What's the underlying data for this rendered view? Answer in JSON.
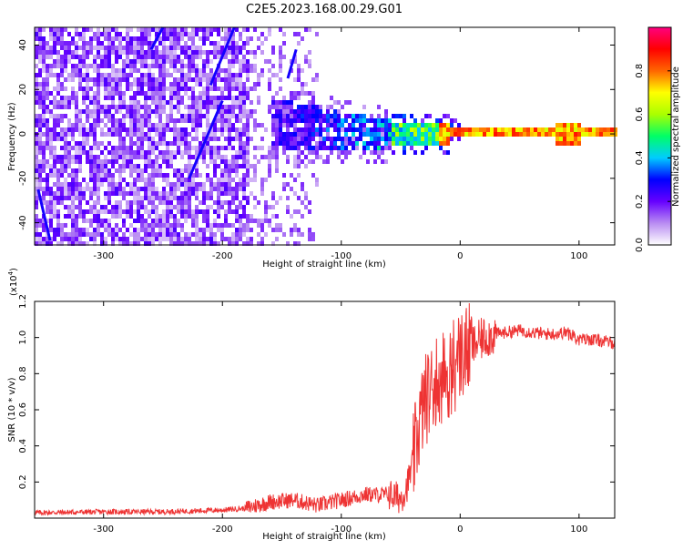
{
  "title": "C2E5.2023.168.00.29.G01",
  "colors": {
    "snr_line": "#ee3333",
    "background": "#ffffff",
    "colorbar_stops": [
      "#ffffff",
      "#b98cf2",
      "#6600ff",
      "#0000ff",
      "#00ccff",
      "#00ff66",
      "#aaff00",
      "#ffff00",
      "#ff6600",
      "#ff0000",
      "#ff0080"
    ]
  },
  "chart_data": [
    {
      "type": "heatmap",
      "xlabel": "Height of straight line (km)",
      "ylabel": "Frequency (Hz)",
      "xlim": [
        -358,
        130
      ],
      "ylim": [
        -50,
        48
      ],
      "xticks": [
        -300,
        -200,
        -100,
        0,
        100
      ],
      "yticks": [
        -40,
        -20,
        0,
        20,
        40
      ],
      "colorbar": {
        "label": "Normalized spectral amplitude",
        "range": [
          0,
          1
        ],
        "ticks": [
          0.0,
          0.2,
          0.4,
          0.6,
          0.8
        ]
      },
      "features": [
        {
          "name": "noise",
          "x_range": [
            -358,
            -180
          ],
          "y_range": [
            -50,
            48
          ],
          "amplitude": 0.2
        },
        {
          "name": "tail",
          "x_range": [
            -160,
            -60
          ],
          "y_center": 5,
          "y_halfwidth": 10,
          "amplitude": 0.35
        },
        {
          "name": "signal",
          "x_range": [
            -60,
            130
          ],
          "y_center": 1,
          "y_halfwidth": 2,
          "amplitude": 0.85
        }
      ],
      "diagonal_streaks": [
        [
          [
            -345,
            -48
          ],
          [
            -355,
            -25
          ]
        ],
        [
          [
            -228,
            -20
          ],
          [
            -200,
            15
          ]
        ],
        [
          [
            -210,
            22
          ],
          [
            -190,
            48
          ]
        ],
        [
          [
            -260,
            38
          ],
          [
            -250,
            48
          ]
        ],
        [
          [
            -145,
            25
          ],
          [
            -138,
            38
          ]
        ]
      ]
    },
    {
      "type": "line",
      "xlabel": "Height of straight line (km)",
      "ylabel": "SNR (10 * v/v)",
      "scale_label": "(x10",
      "scale_exp": "4",
      "scale_close": ")",
      "xlim": [
        -358,
        130
      ],
      "ylim": [
        0,
        12000
      ],
      "xticks": [
        -300,
        -200,
        -100,
        0,
        100
      ],
      "yticks": [
        2000,
        4000,
        6000,
        8000,
        10000,
        12000
      ],
      "ytick_labels": [
        "0.2",
        "0.4",
        "0.6",
        "0.8",
        "1.0",
        "1.2"
      ],
      "series": [
        {
          "x": [
            -358,
            -300,
            -250,
            -200,
            -180,
            -160,
            -140,
            -120,
            -100,
            -80,
            -60,
            -50,
            -45,
            -40,
            -35,
            -30,
            -25,
            -20,
            -15,
            -10,
            -5,
            0,
            10,
            20,
            30,
            40,
            50,
            60,
            70,
            80,
            90,
            95,
            100,
            110,
            120,
            130
          ],
          "y": [
            300,
            350,
            350,
            450,
            550,
            900,
            1000,
            700,
            1000,
            1300,
            1300,
            1100,
            1700,
            3000,
            5000,
            6500,
            7000,
            7800,
            7800,
            7600,
            8800,
            9000,
            9500,
            10000,
            10200,
            10300,
            10400,
            10300,
            10200,
            10200,
            10300,
            10100,
            9900,
            9900,
            9800,
            9700
          ]
        }
      ]
    }
  ]
}
